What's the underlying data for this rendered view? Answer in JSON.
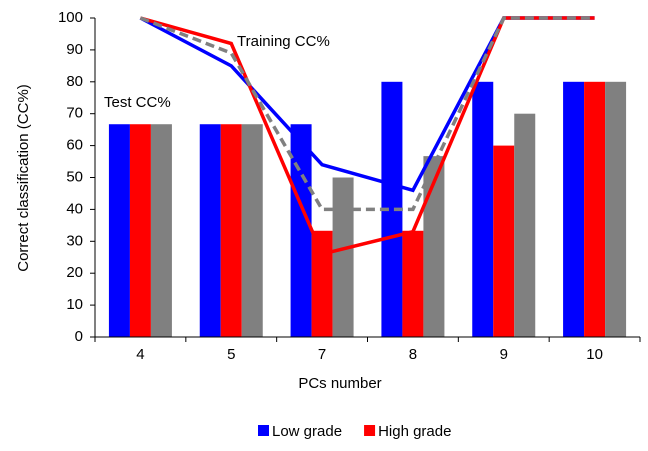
{
  "chart_data": {
    "type": "bar",
    "x_label": "PCs number",
    "y_label": "Correct classification (CC%)",
    "annotations": [
      "Training CC%",
      "Test CC%"
    ],
    "categories": [
      "4",
      "5",
      "7",
      "8",
      "9",
      "10"
    ],
    "ylim": [
      0,
      100
    ],
    "yticks": [
      0,
      10,
      20,
      30,
      40,
      50,
      60,
      70,
      80,
      90,
      100
    ],
    "grid": false,
    "legend": "bottom",
    "series": [
      {
        "type": "bar",
        "name": "Low grade",
        "color": "#0000ff",
        "values": [
          66.7,
          66.7,
          66.7,
          80,
          80,
          80
        ]
      },
      {
        "type": "bar",
        "name": "High grade",
        "color": "#ff0000",
        "values": [
          66.7,
          66.7,
          33.3,
          33.3,
          60,
          80
        ]
      },
      {
        "type": "bar",
        "color": "#808080",
        "values": [
          66.7,
          66.7,
          50,
          56.7,
          70,
          80
        ]
      },
      {
        "type": "line",
        "color": "#0000ff",
        "dashed": false,
        "values": [
          100,
          85,
          54,
          46,
          100,
          100
        ]
      },
      {
        "type": "line",
        "color": "#ff0000",
        "dashed": false,
        "values": [
          100,
          92,
          26,
          33,
          100,
          100
        ]
      },
      {
        "type": "line",
        "color": "#808080",
        "dashed": true,
        "values": [
          100,
          89,
          40,
          40,
          100,
          100
        ]
      }
    ]
  }
}
